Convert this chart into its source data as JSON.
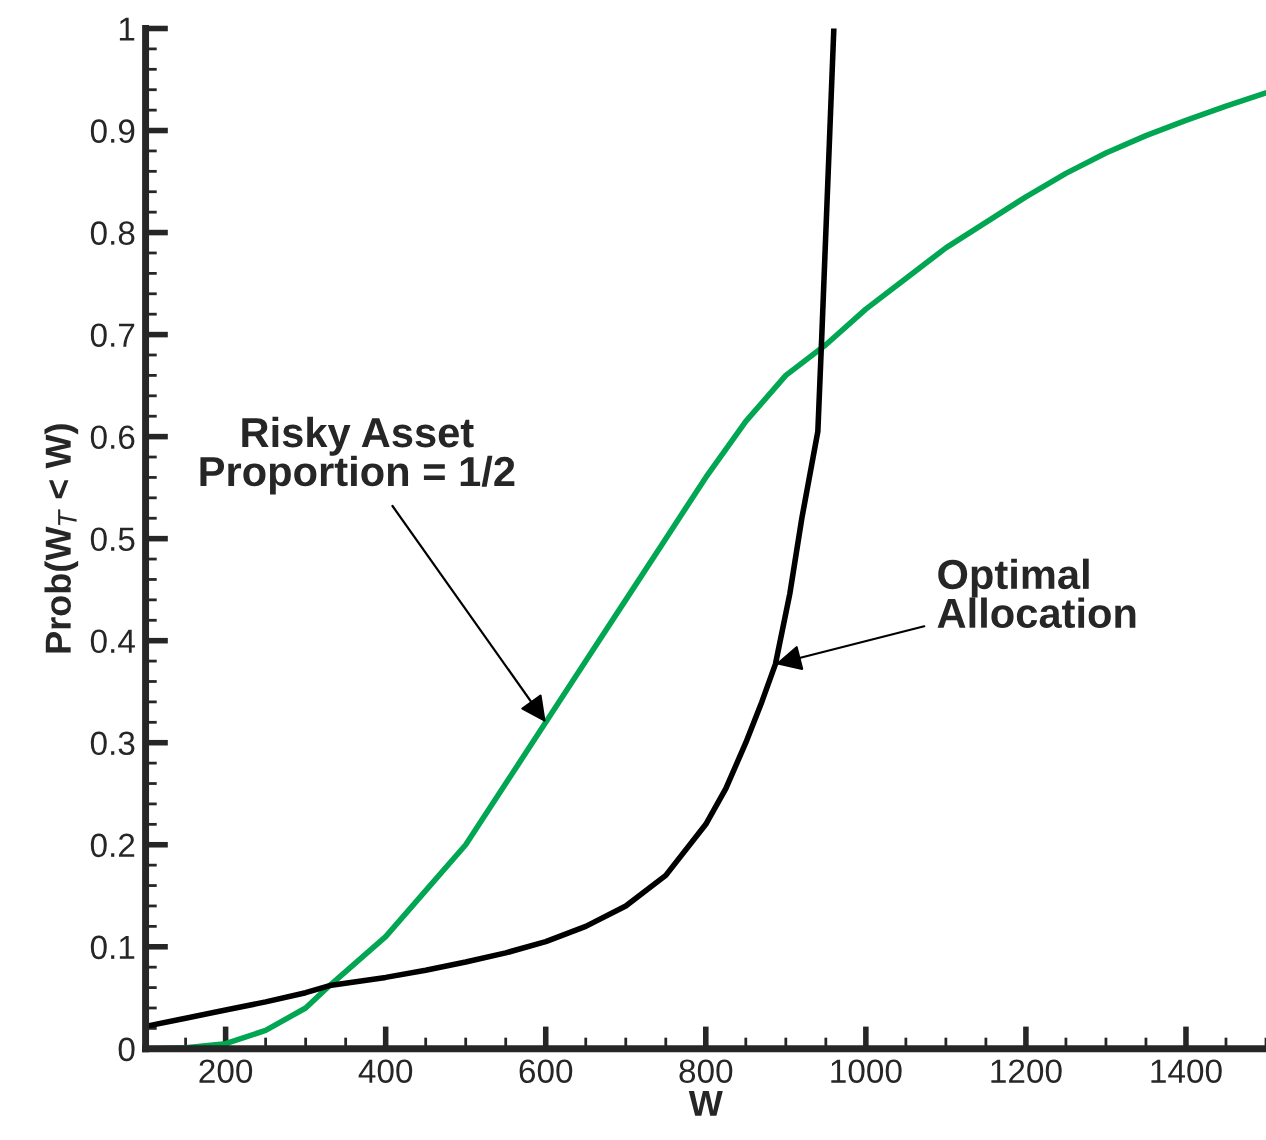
{
  "chart_data": {
    "type": "line",
    "xlabel": "W",
    "ylabel": "Prob(W$_{T}$ < W)",
    "xlim": [
      100,
      1500
    ],
    "ylim": [
      0,
      1
    ],
    "xticks": [
      200,
      400,
      600,
      800,
      1000,
      1200,
      1400
    ],
    "yticks": [
      0,
      {
        "value": 0.1,
        "label": "0.1"
      },
      {
        "value": 0.2,
        "label": "0.2"
      },
      {
        "value": 0.3,
        "label": "0.3"
      },
      {
        "value": 0.4,
        "label": "0.4"
      },
      {
        "value": 0.5,
        "label": "0.5"
      },
      {
        "value": 0.6,
        "label": "0.6"
      },
      {
        "value": 0.7,
        "label": "0.7"
      },
      {
        "value": 0.8,
        "label": "0.8"
      },
      {
        "value": 0.9,
        "label": "0.9"
      },
      1
    ],
    "grid": false,
    "legend": false,
    "marker": "none",
    "line_style": "solid",
    "series": [
      {
        "color": "#00a651",
        "x": [
          100,
          150,
          200,
          250,
          300,
          330,
          400,
          450,
          500,
          550,
          600,
          650,
          700,
          750,
          800,
          850,
          900,
          950,
          1000,
          1050,
          1100,
          1150,
          1200,
          1250,
          1300,
          1350,
          1400,
          1450,
          1500
        ],
        "values": [
          0.0,
          0.001,
          0.005,
          0.018,
          0.04,
          0.062,
          0.11,
          0.155,
          0.2,
          0.26,
          0.32,
          0.38,
          0.44,
          0.5,
          0.56,
          0.615,
          0.66,
          0.69,
          0.725,
          0.755,
          0.785,
          0.81,
          0.835,
          0.858,
          0.878,
          0.895,
          0.91,
          0.924,
          0.937
        ]
      },
      {
        "color": "#000000",
        "x": [
          100,
          150,
          200,
          250,
          300,
          330,
          400,
          450,
          500,
          550,
          600,
          650,
          700,
          750,
          800,
          825,
          850,
          870,
          887,
          905,
          920,
          940,
          945,
          950,
          955,
          960
        ],
        "values": [
          0.022,
          0.03,
          0.038,
          0.046,
          0.055,
          0.062,
          0.07,
          0.077,
          0.085,
          0.094,
          0.105,
          0.12,
          0.14,
          0.17,
          0.22,
          0.255,
          0.3,
          0.34,
          0.377,
          0.446,
          0.52,
          0.605,
          0.7,
          0.8,
          0.9,
          1.0
        ]
      }
    ],
    "annotations": [
      {
        "text": "Risky Asset\nProportion = 1/2",
        "x": 600,
        "y": 0.32
      },
      {
        "text": "Optimal\nAllocation",
        "x": 887,
        "y": 0.377
      }
    ]
  }
}
